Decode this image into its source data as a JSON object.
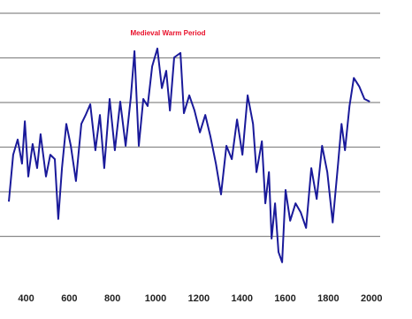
{
  "chart_data": {
    "type": "line",
    "annotation": "Medieval Warm Period",
    "x": [
      320,
      340,
      361,
      381,
      394,
      410,
      430,
      451,
      467,
      492,
      512,
      533,
      549,
      566,
      586,
      607,
      631,
      656,
      676,
      697,
      721,
      742,
      762,
      787,
      811,
      836,
      861,
      885,
      902,
      922,
      943,
      963,
      984,
      1008,
      1029,
      1049,
      1066,
      1086,
      1115,
      1131,
      1156,
      1180,
      1205,
      1230,
      1254,
      1279,
      1303,
      1328,
      1353,
      1377,
      1402,
      1426,
      1451,
      1467,
      1492,
      1508,
      1525,
      1537,
      1553,
      1569,
      1586,
      1602,
      1623,
      1648,
      1672,
      1697,
      1721,
      1746,
      1771,
      1795,
      1820,
      1845,
      1861,
      1877,
      1898,
      1918,
      1943,
      1967,
      1992
    ],
    "series": [
      {
        "color": "#1a1a9a",
        "values": [
          1.78,
          2.83,
          3.17,
          2.63,
          3.58,
          2.34,
          3.07,
          2.53,
          3.29,
          2.34,
          2.83,
          2.73,
          1.39,
          2.53,
          3.52,
          3.03,
          2.24,
          3.52,
          3.72,
          3.96,
          2.93,
          3.72,
          2.53,
          4.08,
          2.93,
          4.02,
          3.03,
          4.12,
          5.15,
          3.03,
          4.08,
          3.92,
          4.81,
          5.21,
          4.32,
          4.71,
          3.82,
          5.01,
          5.11,
          3.76,
          4.16,
          3.82,
          3.33,
          3.72,
          3.23,
          2.63,
          1.94,
          3.03,
          2.73,
          3.62,
          2.83,
          4.16,
          3.52,
          2.44,
          3.13,
          1.74,
          2.44,
          0.95,
          1.74,
          0.65,
          0.42,
          2.04,
          1.35,
          1.74,
          1.54,
          1.19,
          2.53,
          1.84,
          3.03,
          2.44,
          1.31,
          2.63,
          3.52,
          2.93,
          3.92,
          4.55,
          4.36,
          4.08,
          4.02
        ]
      }
    ],
    "xlim": [
      320,
      2040
    ],
    "xticks": [
      400,
      600,
      800,
      1000,
      1200,
      1400,
      1600,
      1800,
      2000
    ],
    "ylim": [
      0,
      6
    ],
    "yticks": [
      1,
      2,
      3,
      4,
      5,
      6
    ],
    "grid": true
  }
}
